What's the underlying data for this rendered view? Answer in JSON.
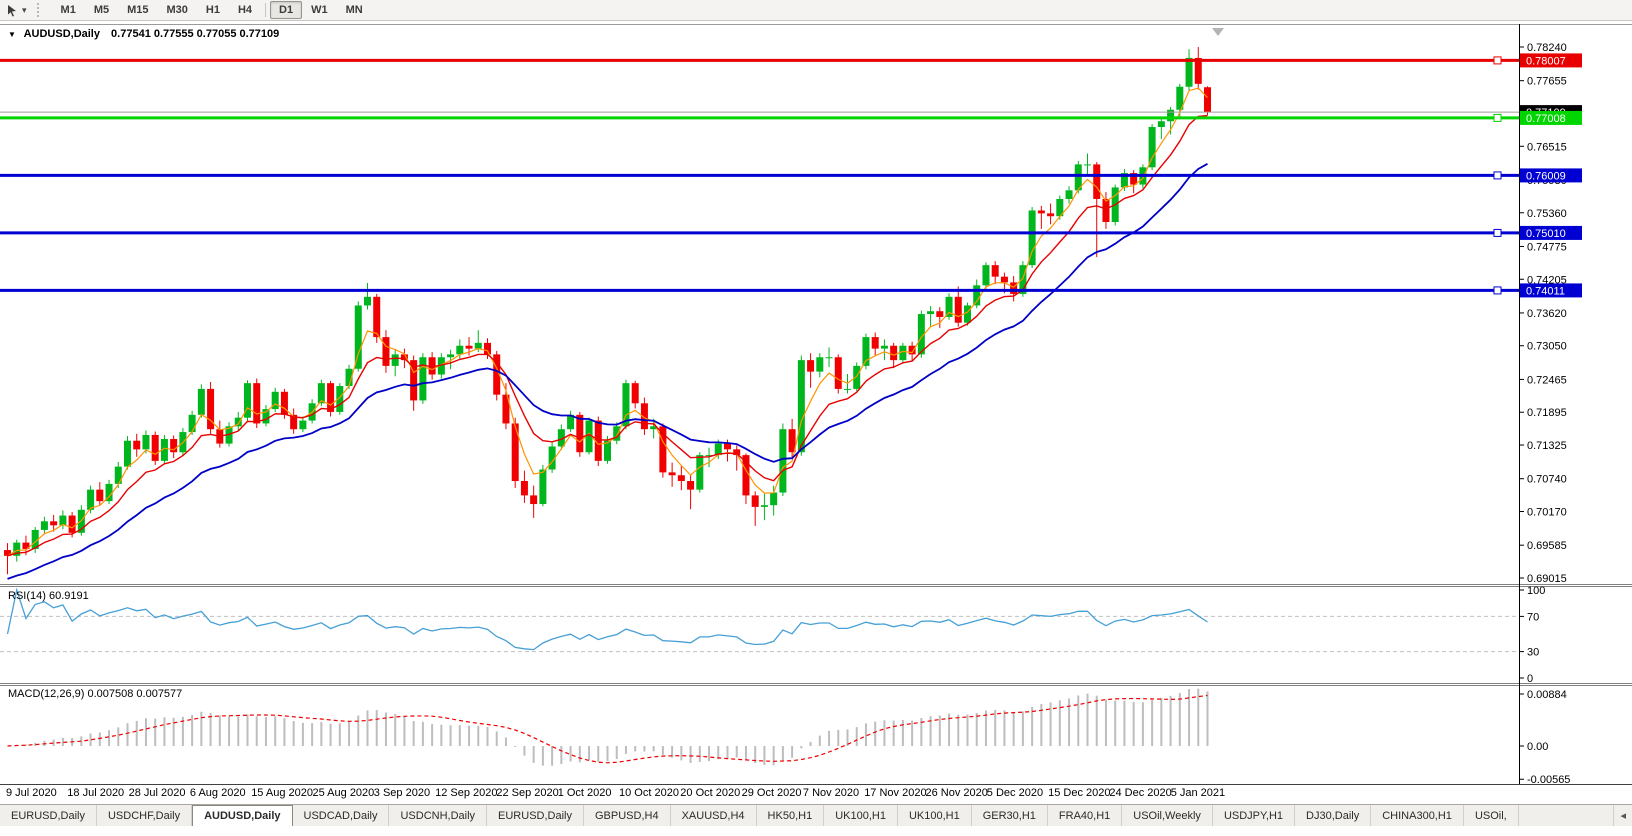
{
  "toolbar": {
    "timeframes": [
      "M1",
      "M5",
      "M15",
      "M30",
      "H1",
      "H4",
      "D1",
      "W1",
      "MN"
    ],
    "active_timeframe": "D1"
  },
  "chart_title": {
    "symbol_period": "AUDUSD,Daily",
    "ohlc": "0.77541 0.77555 0.77055 0.77109"
  },
  "chart_data": {
    "type": "candlestick",
    "symbol": "AUDUSD",
    "period": "Daily",
    "last_ohlc": {
      "open": 0.77541,
      "high": 0.77555,
      "low": 0.77055,
      "close": 0.77109
    },
    "price_axis_ticks": [
      "0.78240",
      "0.77655",
      "0.77070",
      "0.76515",
      "0.75930",
      "0.75360",
      "0.74775",
      "0.74205",
      "0.73620",
      "0.73050",
      "0.72465",
      "0.71895",
      "0.71325",
      "0.70740",
      "0.70170",
      "0.69585",
      "0.69015"
    ],
    "axis_top_price": 0.7824,
    "axis_bottom_price": 0.69015,
    "date_labels": [
      "9 Jul 2020",
      "18 Jul 2020",
      "28 Jul 2020",
      "6 Aug 2020",
      "15 Aug 2020",
      "25 Aug 2020",
      "3 Sep 2020",
      "12 Sep 2020",
      "22 Sep 2020",
      "1 Oct 2020",
      "10 Oct 2020",
      "20 Oct 2020",
      "29 Oct 2020",
      "7 Nov 2020",
      "17 Nov 2020",
      "26 Nov 2020",
      "5 Dec 2020",
      "15 Dec 2020",
      "24 Dec 2020",
      "5 Jan 2021"
    ],
    "horizontal_lines": [
      {
        "price": 0.78007,
        "label": "0.78007",
        "color": "#e80000"
      },
      {
        "price": 0.77008,
        "label": "0.77008",
        "color": "#00d500"
      },
      {
        "price": 0.76009,
        "label": "0.76009",
        "color": "#0000d2"
      },
      {
        "price": 0.7501,
        "label": "0.75010",
        "color": "#0000d2"
      },
      {
        "price": 0.74011,
        "label": "0.74011",
        "color": "#0000d2"
      }
    ],
    "current_price": {
      "value": 0.77109,
      "label": "0.77109",
      "line_color": "#9c9c9c",
      "box_color": "#000000"
    },
    "moving_averages": [
      {
        "name": "fast-ma",
        "color": "#ff9400",
        "ema_period": 4,
        "width": 1.2
      },
      {
        "name": "mid-ma",
        "color": "#e80000",
        "ema_period": 9,
        "width": 1.4
      },
      {
        "name": "slow-ma",
        "color": "#0000c8",
        "ema_period": 21,
        "width": 1.8
      }
    ],
    "colors": {
      "up": "#00b61e",
      "down": "#f00000",
      "background": "#ffffff"
    },
    "candles_ohlc": [
      [
        0.695,
        0.6962,
        0.6908,
        0.694
      ],
      [
        0.694,
        0.6968,
        0.693,
        0.6963
      ],
      [
        0.6963,
        0.6975,
        0.6941,
        0.6952
      ],
      [
        0.6952,
        0.699,
        0.6945,
        0.6985
      ],
      [
        0.6985,
        0.7008,
        0.6977,
        0.7
      ],
      [
        0.7,
        0.7011,
        0.6982,
        0.6993
      ],
      [
        0.6993,
        0.7019,
        0.6986,
        0.701
      ],
      [
        0.701,
        0.7016,
        0.6972,
        0.698
      ],
      [
        0.698,
        0.7028,
        0.6975,
        0.702
      ],
      [
        0.702,
        0.7062,
        0.7014,
        0.7055
      ],
      [
        0.7055,
        0.7068,
        0.7028,
        0.7035
      ],
      [
        0.7035,
        0.7072,
        0.703,
        0.7065
      ],
      [
        0.7065,
        0.7103,
        0.7058,
        0.7095
      ],
      [
        0.7095,
        0.7148,
        0.709,
        0.714
      ],
      [
        0.714,
        0.7152,
        0.7112,
        0.7125
      ],
      [
        0.7125,
        0.7158,
        0.7118,
        0.715
      ],
      [
        0.715,
        0.7156,
        0.7098,
        0.7105
      ],
      [
        0.7105,
        0.715,
        0.71,
        0.7143
      ],
      [
        0.7143,
        0.7149,
        0.711,
        0.712
      ],
      [
        0.712,
        0.7162,
        0.7114,
        0.7155
      ],
      [
        0.7155,
        0.7192,
        0.715,
        0.7185
      ],
      [
        0.7185,
        0.7238,
        0.718,
        0.723
      ],
      [
        0.723,
        0.7242,
        0.7152,
        0.716
      ],
      [
        0.716,
        0.7175,
        0.7128,
        0.7135
      ],
      [
        0.7135,
        0.7172,
        0.713,
        0.7165
      ],
      [
        0.7165,
        0.719,
        0.7158,
        0.718
      ],
      [
        0.718,
        0.7245,
        0.7172,
        0.724
      ],
      [
        0.724,
        0.7248,
        0.7162,
        0.717
      ],
      [
        0.717,
        0.7202,
        0.7165,
        0.7195
      ],
      [
        0.7195,
        0.7232,
        0.719,
        0.7225
      ],
      [
        0.7225,
        0.723,
        0.7178,
        0.7185
      ],
      [
        0.7185,
        0.7196,
        0.7152,
        0.716
      ],
      [
        0.716,
        0.7182,
        0.7155,
        0.7175
      ],
      [
        0.7175,
        0.7212,
        0.717,
        0.7205
      ],
      [
        0.7205,
        0.7246,
        0.72,
        0.724
      ],
      [
        0.724,
        0.7244,
        0.7182,
        0.719
      ],
      [
        0.719,
        0.724,
        0.7185,
        0.7235
      ],
      [
        0.7235,
        0.7272,
        0.723,
        0.7265
      ],
      [
        0.7265,
        0.7382,
        0.726,
        0.7375
      ],
      [
        0.7375,
        0.7414,
        0.7368,
        0.739
      ],
      [
        0.739,
        0.7395,
        0.731,
        0.732
      ],
      [
        0.732,
        0.7332,
        0.7258,
        0.727
      ],
      [
        0.727,
        0.7298,
        0.7252,
        0.729
      ],
      [
        0.729,
        0.73,
        0.7266,
        0.728
      ],
      [
        0.728,
        0.7288,
        0.7192,
        0.721
      ],
      [
        0.721,
        0.7292,
        0.7204,
        0.7285
      ],
      [
        0.7285,
        0.7294,
        0.7246,
        0.7255
      ],
      [
        0.7255,
        0.7292,
        0.7248,
        0.7285
      ],
      [
        0.7285,
        0.7298,
        0.7264,
        0.729
      ],
      [
        0.729,
        0.7316,
        0.7282,
        0.7305
      ],
      [
        0.7305,
        0.732,
        0.7288,
        0.73
      ],
      [
        0.73,
        0.7332,
        0.7294,
        0.731
      ],
      [
        0.731,
        0.7318,
        0.7282,
        0.729
      ],
      [
        0.729,
        0.7296,
        0.721,
        0.722
      ],
      [
        0.722,
        0.724,
        0.716,
        0.717
      ],
      [
        0.717,
        0.718,
        0.7058,
        0.707
      ],
      [
        0.707,
        0.7088,
        0.7032,
        0.7045
      ],
      [
        0.7045,
        0.7062,
        0.7006,
        0.703
      ],
      [
        0.703,
        0.7098,
        0.7026,
        0.709
      ],
      [
        0.709,
        0.7138,
        0.7084,
        0.713
      ],
      [
        0.713,
        0.7168,
        0.7124,
        0.716
      ],
      [
        0.716,
        0.7192,
        0.7155,
        0.7185
      ],
      [
        0.7185,
        0.719,
        0.7112,
        0.712
      ],
      [
        0.712,
        0.718,
        0.7116,
        0.7175
      ],
      [
        0.7175,
        0.7182,
        0.7096,
        0.7105
      ],
      [
        0.7105,
        0.7148,
        0.71,
        0.714
      ],
      [
        0.714,
        0.7172,
        0.7134,
        0.7165
      ],
      [
        0.7165,
        0.7246,
        0.716,
        0.724
      ],
      [
        0.724,
        0.7244,
        0.7196,
        0.7205
      ],
      [
        0.7205,
        0.7215,
        0.715,
        0.716
      ],
      [
        0.716,
        0.7178,
        0.7144,
        0.7165
      ],
      [
        0.7165,
        0.717,
        0.7076,
        0.7085
      ],
      [
        0.7085,
        0.7102,
        0.706,
        0.708
      ],
      [
        0.708,
        0.7096,
        0.7054,
        0.707
      ],
      [
        0.707,
        0.7082,
        0.7021,
        0.7055
      ],
      [
        0.7055,
        0.712,
        0.705,
        0.7115
      ],
      [
        0.7115,
        0.7128,
        0.7094,
        0.7115
      ],
      [
        0.7115,
        0.7142,
        0.7108,
        0.7135
      ],
      [
        0.7135,
        0.7142,
        0.7104,
        0.7125
      ],
      [
        0.7125,
        0.7132,
        0.7088,
        0.7115
      ],
      [
        0.7115,
        0.7118,
        0.703,
        0.7045
      ],
      [
        0.7045,
        0.7052,
        0.6992,
        0.7025
      ],
      [
        0.7025,
        0.7048,
        0.7002,
        0.7028
      ],
      [
        0.7028,
        0.7062,
        0.701,
        0.705
      ],
      [
        0.705,
        0.717,
        0.7044,
        0.716
      ],
      [
        0.716,
        0.7178,
        0.7108,
        0.712
      ],
      [
        0.712,
        0.7288,
        0.7114,
        0.728
      ],
      [
        0.728,
        0.7292,
        0.7232,
        0.726
      ],
      [
        0.726,
        0.7292,
        0.725,
        0.7285
      ],
      [
        0.7285,
        0.7302,
        0.7268,
        0.7285
      ],
      [
        0.7285,
        0.729,
        0.7222,
        0.723
      ],
      [
        0.723,
        0.7256,
        0.7222,
        0.723
      ],
      [
        0.723,
        0.7276,
        0.7226,
        0.727
      ],
      [
        0.727,
        0.7326,
        0.7264,
        0.732
      ],
      [
        0.732,
        0.7328,
        0.7288,
        0.73
      ],
      [
        0.73,
        0.7316,
        0.728,
        0.7305
      ],
      [
        0.7305,
        0.731,
        0.7266,
        0.728
      ],
      [
        0.728,
        0.731,
        0.7274,
        0.7305
      ],
      [
        0.7305,
        0.7312,
        0.7278,
        0.729
      ],
      [
        0.729,
        0.7366,
        0.7284,
        0.736
      ],
      [
        0.736,
        0.7374,
        0.7338,
        0.7365
      ],
      [
        0.7365,
        0.7372,
        0.7336,
        0.7355
      ],
      [
        0.7355,
        0.7396,
        0.735,
        0.739
      ],
      [
        0.739,
        0.7408,
        0.7338,
        0.7345
      ],
      [
        0.7345,
        0.738,
        0.734,
        0.7375
      ],
      [
        0.7375,
        0.742,
        0.737,
        0.741
      ],
      [
        0.741,
        0.745,
        0.7404,
        0.7445
      ],
      [
        0.7445,
        0.7452,
        0.7412,
        0.7425
      ],
      [
        0.7425,
        0.7432,
        0.7396,
        0.7415
      ],
      [
        0.7415,
        0.7426,
        0.7382,
        0.7395
      ],
      [
        0.7395,
        0.7452,
        0.739,
        0.7445
      ],
      [
        0.7445,
        0.7546,
        0.744,
        0.754
      ],
      [
        0.754,
        0.7548,
        0.7508,
        0.7535
      ],
      [
        0.7535,
        0.7552,
        0.7516,
        0.753
      ],
      [
        0.753,
        0.7566,
        0.7524,
        0.756
      ],
      [
        0.756,
        0.7582,
        0.7552,
        0.7575
      ],
      [
        0.7575,
        0.7626,
        0.757,
        0.762
      ],
      [
        0.762,
        0.7639,
        0.76,
        0.762
      ],
      [
        0.762,
        0.7624,
        0.7459,
        0.756
      ],
      [
        0.756,
        0.7572,
        0.7508,
        0.752
      ],
      [
        0.752,
        0.7585,
        0.7514,
        0.758
      ],
      [
        0.758,
        0.7612,
        0.7574,
        0.7605
      ],
      [
        0.7605,
        0.761,
        0.757,
        0.7585
      ],
      [
        0.7585,
        0.762,
        0.7578,
        0.7615
      ],
      [
        0.7615,
        0.769,
        0.761,
        0.7685
      ],
      [
        0.7685,
        0.7702,
        0.7664,
        0.7695
      ],
      [
        0.7695,
        0.772,
        0.7672,
        0.7715
      ],
      [
        0.7715,
        0.776,
        0.7702,
        0.7755
      ],
      [
        0.7755,
        0.782,
        0.7748,
        0.7805
      ],
      [
        0.7805,
        0.7824,
        0.775,
        0.776
      ],
      [
        0.77541,
        0.77555,
        0.77055,
        0.77109
      ]
    ]
  },
  "rsi": {
    "label": "RSI(14) 60.9191",
    "value": 60.9191,
    "period": 14,
    "axis_ticks": [
      "100",
      "70",
      "30",
      "0"
    ],
    "levels": [
      70,
      30
    ],
    "line_color": "#46a0d7",
    "level_color": "#c0c0c0"
  },
  "macd": {
    "label": "MACD(12,26,9) 0.007508 0.007577",
    "main_value": 0.007508,
    "signal_value": 0.007577,
    "axis_ticks": [
      "0.00884",
      "0.00",
      "-0.00565"
    ],
    "axis_max": 0.00884,
    "axis_min": -0.00565,
    "histogram_color": "#bdbdbd",
    "signal_color": "#f00000"
  },
  "tabs": {
    "items": [
      "EURUSD,Daily",
      "USDCHF,Daily",
      "AUDUSD,Daily",
      "USDCAD,Daily",
      "USDCNH,Daily",
      "EURUSD,Daily",
      "GBPUSD,H4",
      "XAUUSD,H4",
      "HK50,H1",
      "UK100,H1",
      "UK100,H1",
      "GER30,H1",
      "FRA40,H1",
      "USOil,Weekly",
      "USDJPY,H1",
      "DJ30,Daily",
      "CHINA300,H1",
      "USOil,"
    ],
    "active_index": 2,
    "scroll_left_icon": "◂"
  }
}
